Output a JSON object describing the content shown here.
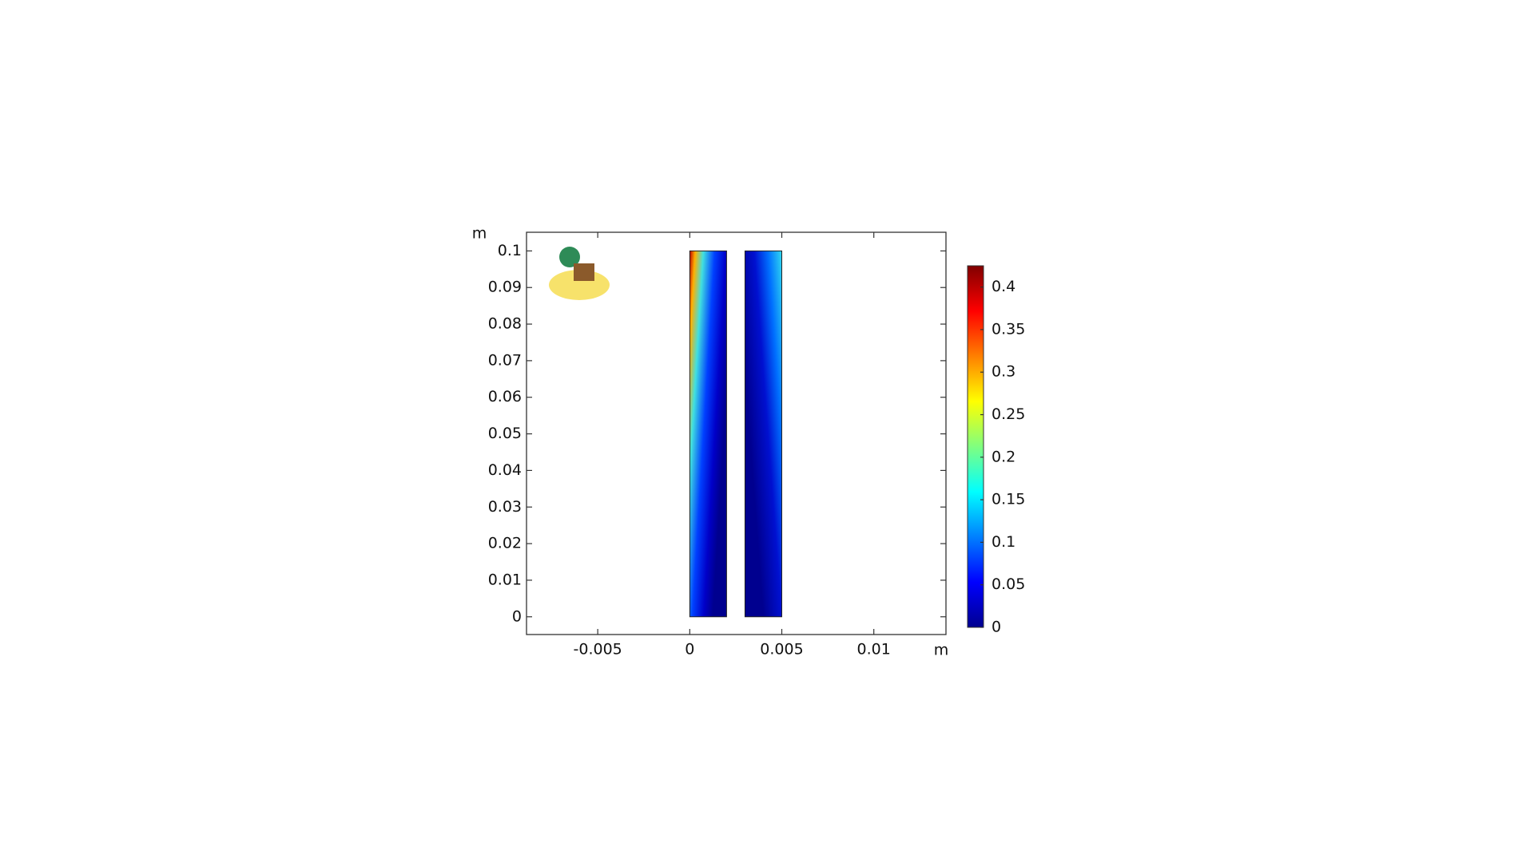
{
  "chart_data": {
    "type": "surface",
    "xlabel": "m",
    "ylabel": "m",
    "xlim": [
      -0.00887,
      0.01392
    ],
    "xticks": [
      -0.005,
      0,
      0.005,
      0.01
    ],
    "ylim": [
      -0.00485,
      0.1051
    ],
    "yticks": [
      0,
      0.01,
      0.02,
      0.03,
      0.04,
      0.05,
      0.06,
      0.07,
      0.08,
      0.09,
      0.1
    ],
    "domains": [
      {
        "x": [
          0,
          0.002
        ],
        "y": [
          0,
          0.1
        ]
      },
      {
        "x": [
          0.003,
          0.005
        ],
        "y": [
          0,
          0.1
        ]
      }
    ],
    "colormap": "jet",
    "clim": [
      0,
      0.425
    ],
    "cticks": [
      0,
      0.05,
      0.1,
      0.15,
      0.2,
      0.25,
      0.3,
      0.35,
      0.4
    ]
  }
}
